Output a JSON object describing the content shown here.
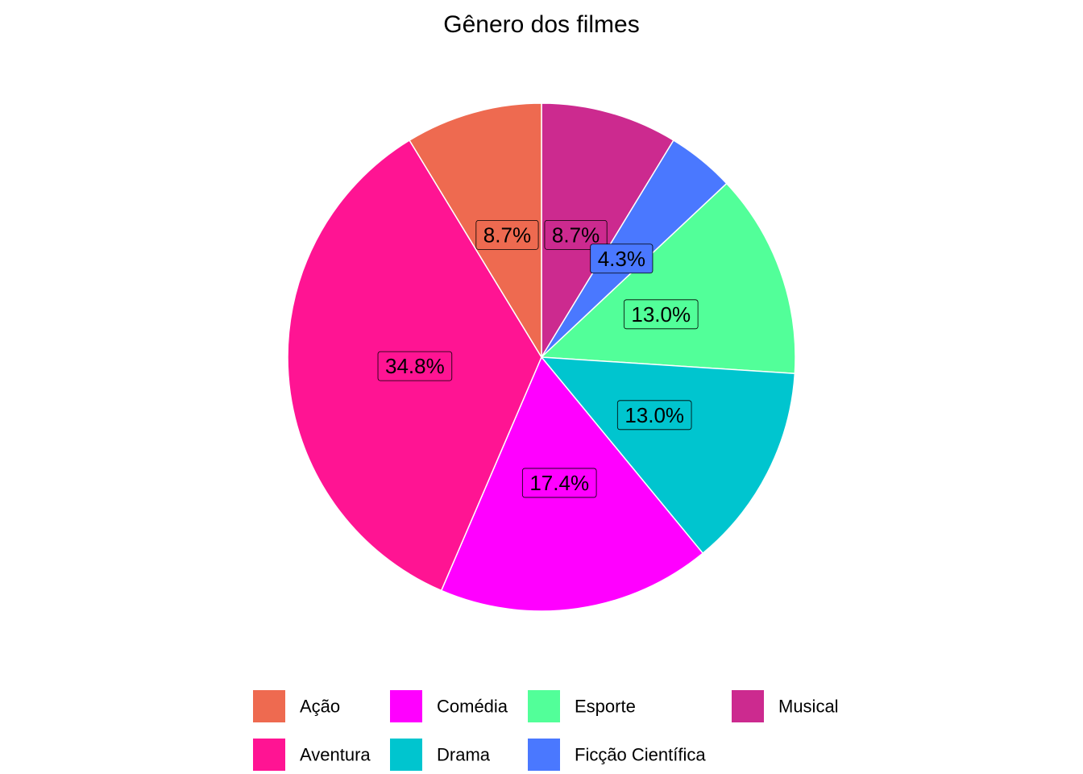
{
  "chart_data": {
    "type": "pie",
    "title": "Gênero dos filmes",
    "slices": [
      {
        "category": "Musical",
        "value": 8.7,
        "label": "8.7%",
        "color": "#CC2A8F"
      },
      {
        "category": "Ficção Científica",
        "value": 4.3,
        "label": "4.3%",
        "color": "#4A78FF"
      },
      {
        "category": "Esporte",
        "value": 13.0,
        "label": "13.0%",
        "color": "#52FF99"
      },
      {
        "category": "Drama",
        "value": 13.0,
        "label": "13.0%",
        "color": "#00C5CF"
      },
      {
        "category": "Comédia",
        "value": 17.4,
        "label": "17.4%",
        "color": "#FF00FF"
      },
      {
        "category": "Aventura",
        "value": 34.8,
        "label": "34.8%",
        "color": "#FF1493"
      },
      {
        "category": "Ação",
        "value": 8.7,
        "label": "8.7%",
        "color": "#EE6A50"
      }
    ],
    "legend": {
      "position": "bottom",
      "rows": 2,
      "entries": [
        {
          "label": "Ação",
          "color": "#EE6A50"
        },
        {
          "label": "Aventura",
          "color": "#FF1493"
        },
        {
          "label": "Comédia",
          "color": "#FF00FF"
        },
        {
          "label": "Drama",
          "color": "#00C5CF"
        },
        {
          "label": "Esporte",
          "color": "#52FF99"
        },
        {
          "label": "Ficção Científica",
          "color": "#4A78FF"
        },
        {
          "label": "Musical",
          "color": "#CC2A8F"
        }
      ]
    }
  }
}
